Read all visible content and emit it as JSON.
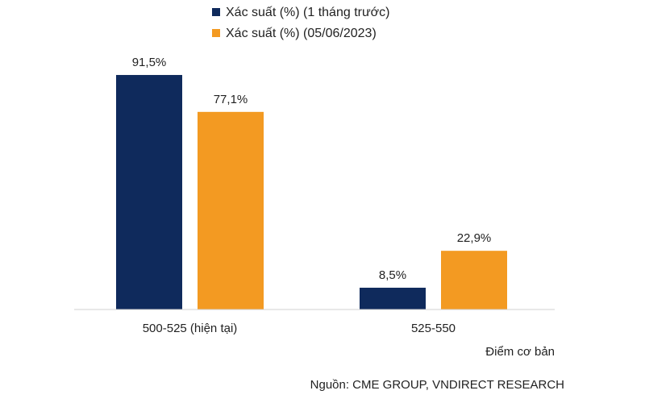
{
  "chart_data": {
    "type": "bar",
    "categories": [
      "500-525 (hiện tại)",
      "525-550"
    ],
    "series": [
      {
        "name": "Xác suất (%) (1 tháng trước)",
        "values": [
          91.5,
          8.5
        ],
        "labels": [
          "91,5%",
          "8,5%"
        ],
        "color": "#0f2a5c"
      },
      {
        "name": "Xác suất (%) (05/06/2023)",
        "values": [
          77.1,
          22.9
        ],
        "labels": [
          "77,1%",
          "22,9%"
        ],
        "color": "#f39a22"
      }
    ],
    "xlabel": "Điểm cơ bản",
    "ylim": [
      0,
      100
    ],
    "grid": false,
    "legend": "top-center",
    "source": "Nguồn: CME GROUP, VNDIRECT RESEARCH"
  }
}
